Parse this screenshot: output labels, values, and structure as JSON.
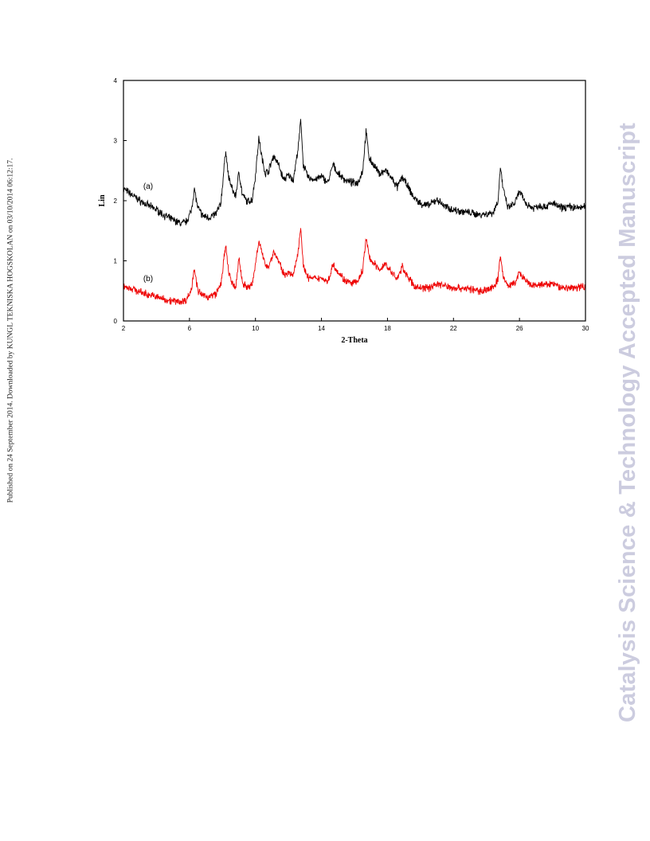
{
  "side_note": "Published on 24 September 2014. Downloaded by KUNGL TEKNISKA HOGSKOLAN on 03/10/2014 06:12:17.",
  "watermark": "Catalysis Science & Technology Accepted Manuscript",
  "colors": {
    "watermark": "#ccccdf",
    "series_a": "#000000",
    "series_b": "#ee0000",
    "frame": "#000000"
  },
  "chart_data": {
    "type": "line",
    "title": "",
    "xlabel": "2-Theta",
    "ylabel": "Lin",
    "xlim": [
      2,
      30
    ],
    "ylim": [
      0,
      4
    ],
    "xticks": [
      2,
      6,
      10,
      14,
      18,
      22,
      26,
      30
    ],
    "yticks": [
      0,
      1,
      2,
      3,
      4
    ],
    "grid": false,
    "legend": "none",
    "series": [
      {
        "name": "(a)",
        "color": "#000000",
        "x": [
          2,
          2.5,
          3,
          3.5,
          4,
          4.5,
          5,
          5.5,
          5.8,
          6.1,
          6.3,
          6.5,
          6.8,
          7.2,
          7.6,
          7.9,
          8.1,
          8.2,
          8.35,
          8.6,
          8.8,
          9.0,
          9.2,
          9.5,
          9.8,
          10.0,
          10.2,
          10.4,
          10.6,
          10.8,
          11.1,
          11.4,
          11.7,
          12.0,
          12.3,
          12.6,
          12.75,
          12.9,
          13.2,
          13.6,
          14.0,
          14.4,
          14.7,
          15.0,
          15.4,
          15.8,
          16.2,
          16.5,
          16.7,
          16.9,
          17.2,
          17.5,
          17.9,
          18.3,
          18.6,
          18.9,
          19.2,
          19.6,
          20.0,
          20.5,
          21.0,
          21.5,
          22.0,
          22.5,
          23.0,
          23.5,
          24.0,
          24.4,
          24.7,
          24.85,
          25.0,
          25.3,
          25.7,
          26.0,
          26.4,
          26.8,
          27.2,
          27.6,
          28.0,
          28.5,
          29.0,
          29.5,
          30
        ],
        "y": [
          2.2,
          2.1,
          2.0,
          1.92,
          1.85,
          1.75,
          1.68,
          1.62,
          1.65,
          1.82,
          2.2,
          1.88,
          1.75,
          1.72,
          1.78,
          1.95,
          2.55,
          2.85,
          2.42,
          2.18,
          2.08,
          2.48,
          2.1,
          1.98,
          2.02,
          2.42,
          3.05,
          2.7,
          2.45,
          2.5,
          2.75,
          2.6,
          2.35,
          2.42,
          2.35,
          2.9,
          3.35,
          2.6,
          2.38,
          2.35,
          2.4,
          2.3,
          2.6,
          2.45,
          2.35,
          2.3,
          2.3,
          2.5,
          3.15,
          2.7,
          2.58,
          2.45,
          2.5,
          2.35,
          2.22,
          2.4,
          2.25,
          2.05,
          1.95,
          1.92,
          2.02,
          1.9,
          1.85,
          1.82,
          1.8,
          1.77,
          1.78,
          1.8,
          2.0,
          2.58,
          2.2,
          1.88,
          1.95,
          2.15,
          1.95,
          1.88,
          1.92,
          1.9,
          1.96,
          1.88,
          1.9,
          1.88,
          1.9
        ]
      },
      {
        "name": "(b)",
        "color": "#ee0000",
        "x": [
          2,
          2.5,
          3,
          3.5,
          4,
          4.5,
          5,
          5.5,
          5.8,
          6.1,
          6.3,
          6.5,
          6.8,
          7.2,
          7.6,
          7.9,
          8.1,
          8.2,
          8.35,
          8.6,
          8.8,
          9.0,
          9.2,
          9.5,
          9.8,
          10.0,
          10.2,
          10.4,
          10.6,
          10.8,
          11.1,
          11.4,
          11.7,
          12.0,
          12.3,
          12.6,
          12.75,
          12.9,
          13.2,
          13.6,
          14.0,
          14.4,
          14.7,
          15.0,
          15.4,
          15.8,
          16.2,
          16.5,
          16.7,
          16.9,
          17.2,
          17.5,
          17.9,
          18.3,
          18.6,
          18.9,
          19.2,
          19.6,
          20.0,
          20.5,
          21.0,
          21.5,
          22.0,
          22.5,
          23.0,
          23.5,
          24.0,
          24.4,
          24.7,
          24.85,
          25.0,
          25.3,
          25.7,
          26.0,
          26.4,
          26.8,
          27.2,
          27.6,
          28.0,
          28.5,
          29.0,
          29.5,
          30
        ],
        "y": [
          0.58,
          0.54,
          0.48,
          0.44,
          0.4,
          0.36,
          0.33,
          0.32,
          0.35,
          0.5,
          0.9,
          0.5,
          0.42,
          0.4,
          0.45,
          0.6,
          1.05,
          1.25,
          0.85,
          0.6,
          0.55,
          1.05,
          0.65,
          0.55,
          0.6,
          0.95,
          1.35,
          1.1,
          0.95,
          0.9,
          1.15,
          1.0,
          0.78,
          0.8,
          0.75,
          1.2,
          1.58,
          0.9,
          0.72,
          0.7,
          0.72,
          0.65,
          0.95,
          0.82,
          0.68,
          0.62,
          0.65,
          0.85,
          1.38,
          1.05,
          0.95,
          0.85,
          0.95,
          0.78,
          0.7,
          0.9,
          0.75,
          0.58,
          0.55,
          0.55,
          0.62,
          0.58,
          0.55,
          0.55,
          0.53,
          0.5,
          0.52,
          0.55,
          0.7,
          1.1,
          0.75,
          0.58,
          0.62,
          0.8,
          0.65,
          0.58,
          0.6,
          0.6,
          0.62,
          0.56,
          0.55,
          0.56,
          0.58
        ]
      }
    ]
  }
}
